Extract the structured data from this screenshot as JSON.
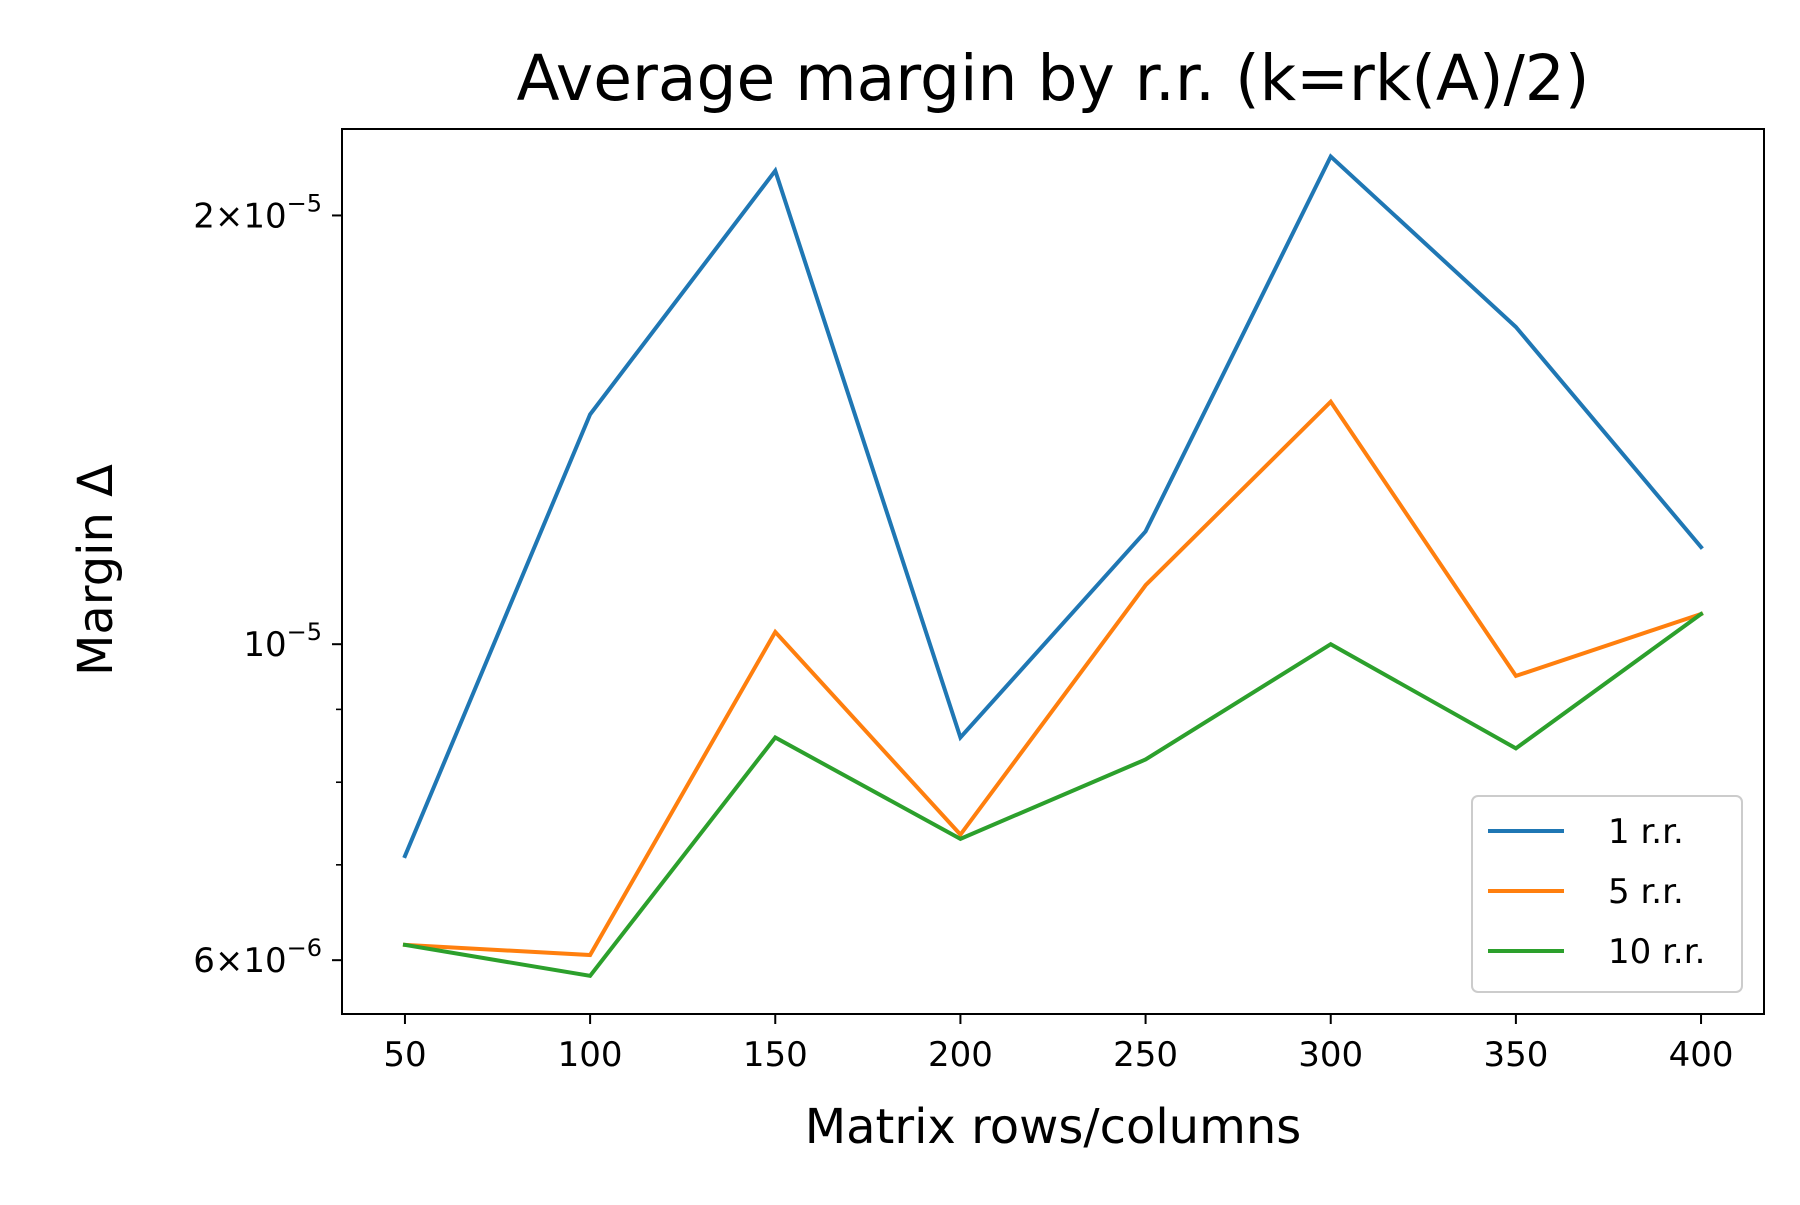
{
  "chart_data": {
    "type": "line",
    "title": "Average margin by r.r. (k=rk(A)/2)",
    "xlabel": "Matrix rows/columns",
    "ylabel": "Margin Δ",
    "x": [
      50,
      100,
      150,
      200,
      250,
      300,
      350,
      400
    ],
    "x_ticks": [
      "50",
      "100",
      "150",
      "200",
      "250",
      "300",
      "350",
      "400"
    ],
    "xlim": [
      33,
      417
    ],
    "y_scale": "log",
    "ylim": [
      5.5e-06,
      2.3e-05
    ],
    "y_ticks_major": [
      {
        "value": 2e-05,
        "mantissa": "2",
        "exponent": "−5"
      },
      {
        "value": 1e-05,
        "mantissa": "",
        "exponent": "−5"
      },
      {
        "value": 6e-06,
        "mantissa": "6",
        "exponent": "−6"
      }
    ],
    "y_ticks_minor": [
      3e-06,
      4e-06,
      5e-06,
      7e-06,
      8e-06,
      9e-06,
      3e-05
    ],
    "grid": false,
    "legend_position": "lower right",
    "series": [
      {
        "name": "1 r.r.",
        "color": "#1f77b4",
        "values": [
          7.1e-06,
          1.45e-05,
          2.15e-05,
          8.6e-06,
          1.2e-05,
          2.2e-05,
          1.67e-05,
          1.17e-05
        ]
      },
      {
        "name": "5 r.r.",
        "color": "#ff7f0e",
        "values": [
          6.15e-06,
          6.05e-06,
          1.02e-05,
          7.35e-06,
          1.1e-05,
          1.48e-05,
          9.5e-06,
          1.05e-05
        ]
      },
      {
        "name": "10 r.r.",
        "color": "#2ca02c",
        "values": [
          6.15e-06,
          5.85e-06,
          8.6e-06,
          7.3e-06,
          8.3e-06,
          1e-05,
          8.45e-06,
          1.05e-05
        ]
      }
    ]
  }
}
